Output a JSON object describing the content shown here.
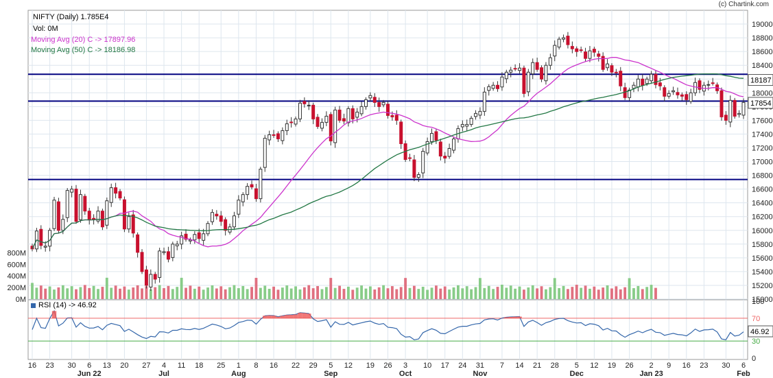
{
  "credit": "(c) Chartink.com",
  "legend": {
    "title": "NIFTY (Daily) 1.785E4",
    "vol": "Vol: 0M",
    "ma20": "Moving Avg (20) C -> 17897.96",
    "ma50": "Moving Avg (50) C -> 18186.98",
    "rsi": "RSI (14) -> 46.92"
  },
  "colors": {
    "up": "#ffffff",
    "down": "#c8102e",
    "ma20": "#cc33cc",
    "ma50": "#227744",
    "hline": "#000080",
    "vol_up": "#88cc88",
    "vol_down": "#e07080",
    "rsi": "#3366aa"
  },
  "chart_data": [
    {
      "type": "candlestick",
      "title": "NIFTY (Daily) 1.785E4",
      "ylim": [
        15000,
        19200
      ],
      "yticks": [
        15000,
        15200,
        15400,
        15600,
        15800,
        16000,
        16200,
        16400,
        16600,
        16800,
        17000,
        17200,
        17400,
        17600,
        17800,
        18000,
        18200,
        18400,
        18600,
        18800,
        19000
      ],
      "x_tick_labels": [
        "16",
        "23",
        "30",
        "6",
        "13",
        "20",
        "27",
        "4",
        "11",
        "18",
        "25",
        "1",
        "8",
        "16",
        "22",
        "29",
        "5",
        "12",
        "19",
        "26",
        "3",
        "10",
        "17",
        "24",
        "31",
        "7",
        "14",
        "21",
        "28",
        "5",
        "12",
        "19",
        "26",
        "2",
        "9",
        "16",
        "23",
        "30",
        "6"
      ],
      "month_labels": [
        "Jun 22",
        "Jul",
        "Aug",
        "Sep",
        "Oct",
        "Nov",
        "Dec",
        "Jan 23",
        "Feb"
      ],
      "horizontal_lines": [
        18270,
        17880,
        16740
      ],
      "price_markers": [
        "18187",
        "17854"
      ],
      "series": [
        {
          "name": "NIFTY",
          "close": [
            15730,
            15990,
            15780,
            15770,
            16000,
            16440,
            16000,
            16160,
            16580,
            16600,
            16130,
            16520,
            16280,
            16150,
            16160,
            16280,
            16050,
            16430,
            16620,
            16540,
            16470,
            16020,
            16200,
            15960,
            15680,
            15400,
            15200,
            15360,
            15290,
            15700,
            15690,
            15580,
            15800,
            15800,
            15920,
            15870,
            15860,
            15940,
            15880,
            15950,
            16100,
            16260,
            16210,
            16130,
            16000,
            16050,
            16210,
            16440,
            16520,
            16640,
            16630,
            16460,
            16890,
            17340,
            17390,
            17380,
            17330,
            17450,
            17550,
            17570,
            17620,
            17850,
            17840,
            17820,
            17620,
            17510,
            17570,
            17660,
            17300,
            17750,
            17600,
            17590,
            17770,
            17620,
            17720,
            17800,
            17900,
            17960,
            17860,
            17800,
            17860,
            17670,
            17650,
            17600,
            17260,
            17030,
            17050,
            16770,
            16810,
            17150,
            17290,
            17410,
            17310,
            17080,
            17050,
            17190,
            17330,
            17480,
            17540,
            17540,
            17630,
            17700,
            17730,
            18010,
            18090,
            18110,
            18060,
            18230,
            18300,
            18330,
            18350,
            18360,
            17990,
            18300,
            18440,
            18340,
            18200,
            18400,
            18510,
            18690,
            18780,
            18800,
            18700,
            18640,
            18600,
            18620,
            18500,
            18610,
            18590,
            18530,
            18340,
            18420,
            18300,
            18290,
            18100,
            17930,
            18040,
            18110,
            18200,
            18110,
            18200,
            18270,
            18120,
            18100,
            17950,
            17990,
            18030,
            17970,
            17950,
            17900,
            18000,
            18150,
            18050,
            18110,
            18120,
            18140,
            18030,
            17650,
            17600,
            17890,
            17660,
            17700,
            17860
          ]
        },
        {
          "name": "Moving Avg (20)"
        },
        {
          "name": "Moving Avg (50)"
        }
      ]
    },
    {
      "type": "bar",
      "title": "Vol",
      "ylim": [
        0,
        900
      ],
      "ytick_labels": [
        "0M",
        "200M",
        "400M",
        "600M",
        "800M"
      ],
      "yticks": [
        0,
        200,
        400,
        600,
        800
      ]
    },
    {
      "type": "line",
      "title": "RSI (14) -> 46.92",
      "ylim": [
        0,
        100
      ],
      "ytick_labels": [
        "0",
        "30",
        "70",
        "100"
      ],
      "last_value_label": "46.92",
      "levels": [
        30,
        70
      ]
    }
  ]
}
